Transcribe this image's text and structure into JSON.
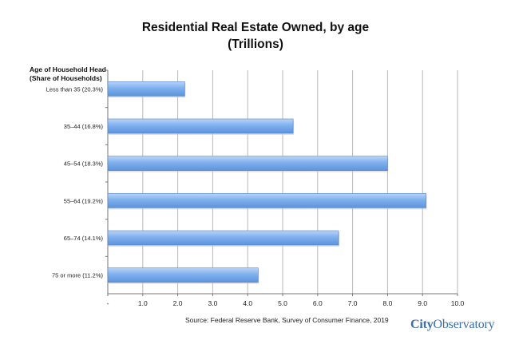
{
  "chart_data": {
    "type": "bar",
    "orientation": "horizontal",
    "title_line1": "Residential Real Estate Owned, by age",
    "title_line2": "(Trillions)",
    "ylabel_line1": "Age of Household Head",
    "ylabel_line2": "(Share of Households)",
    "categories": [
      "Less than 35 (20.3%)",
      "35–44 (16.8%)",
      "45–54 (18.3%)",
      "55–64 (19.2%)",
      "65–74 (14.1%)",
      "75 or more (11.2%)"
    ],
    "values": [
      2.2,
      5.3,
      8.0,
      9.1,
      6.6,
      4.3
    ],
    "xlim": [
      0,
      10
    ],
    "xticks": [
      "-",
      "1.0",
      "2.0",
      "3.0",
      "4.0",
      "5.0",
      "6.0",
      "7.0",
      "8.0",
      "9.0",
      "10.0"
    ],
    "grid": "vertical",
    "bar_color": "#7fb0ee",
    "source": "Source:  Federal Reserve Bank, Survey of Consumer Finance, 2019"
  },
  "logo": {
    "part1": "City",
    "part2": "Observatory"
  }
}
